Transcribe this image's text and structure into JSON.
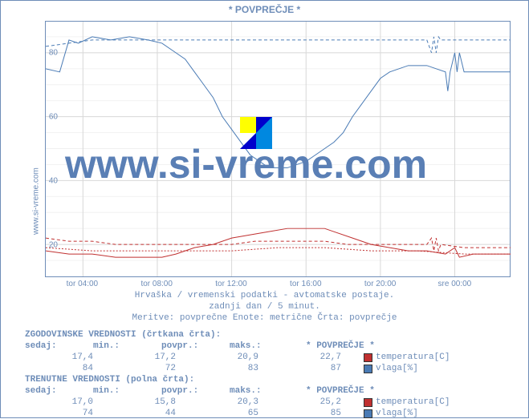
{
  "title": "* POVPREČJE *",
  "ylabel_left": "www.si-vreme.com",
  "watermark": "www.si-vreme.com",
  "caption_lines": [
    "Hrvaška / vremenski podatki - avtomatske postaje.",
    "zadnji dan / 5 minut.",
    "Meritve: povprečne  Enote: metrične  Črta: povprečje"
  ],
  "chart": {
    "type": "line",
    "background": "#ffffff",
    "grid_color": "#d8d8d8",
    "axis_color": "#6e8db8",
    "ylim": [
      10,
      90
    ],
    "yticks": [
      20,
      40,
      60,
      80
    ],
    "xticks": [
      "tor 04:00",
      "tor 08:00",
      "tor 12:00",
      "tor 16:00",
      "tor 20:00",
      "sre 00:00"
    ],
    "xtick_pos": [
      0.08,
      0.24,
      0.4,
      0.56,
      0.72,
      0.88
    ],
    "series": [
      {
        "name": "vlaga_solid",
        "color": "#4a7bb5",
        "dash": "none",
        "width": 1,
        "points": [
          [
            0.0,
            75
          ],
          [
            0.03,
            74
          ],
          [
            0.05,
            84
          ],
          [
            0.07,
            83
          ],
          [
            0.1,
            85
          ],
          [
            0.14,
            84
          ],
          [
            0.18,
            85
          ],
          [
            0.22,
            84
          ],
          [
            0.25,
            83
          ],
          [
            0.28,
            80
          ],
          [
            0.3,
            78
          ],
          [
            0.32,
            74
          ],
          [
            0.34,
            70
          ],
          [
            0.36,
            66
          ],
          [
            0.38,
            60
          ],
          [
            0.4,
            56
          ],
          [
            0.42,
            52
          ],
          [
            0.44,
            48
          ],
          [
            0.46,
            46
          ],
          [
            0.48,
            44
          ],
          [
            0.5,
            44
          ],
          [
            0.52,
            44
          ],
          [
            0.54,
            45
          ],
          [
            0.56,
            46
          ],
          [
            0.58,
            48
          ],
          [
            0.6,
            50
          ],
          [
            0.62,
            52
          ],
          [
            0.64,
            55
          ],
          [
            0.66,
            60
          ],
          [
            0.68,
            64
          ],
          [
            0.7,
            68
          ],
          [
            0.72,
            72
          ],
          [
            0.74,
            74
          ],
          [
            0.76,
            75
          ],
          [
            0.78,
            76
          ],
          [
            0.8,
            76
          ],
          [
            0.82,
            76
          ],
          [
            0.84,
            75
          ],
          [
            0.86,
            74
          ],
          [
            0.865,
            68
          ],
          [
            0.87,
            74
          ],
          [
            0.88,
            80
          ],
          [
            0.885,
            74
          ],
          [
            0.89,
            80
          ],
          [
            0.9,
            74
          ],
          [
            0.94,
            74
          ],
          [
            1.0,
            74
          ]
        ]
      },
      {
        "name": "vlaga_dash",
        "color": "#4a7bb5",
        "dash": "4,3",
        "width": 1,
        "points": [
          [
            0.0,
            82
          ],
          [
            0.05,
            83
          ],
          [
            0.1,
            84
          ],
          [
            0.15,
            84
          ],
          [
            0.2,
            84
          ],
          [
            0.25,
            84
          ],
          [
            0.3,
            84
          ],
          [
            0.35,
            84
          ],
          [
            0.4,
            84
          ],
          [
            0.45,
            84
          ],
          [
            0.5,
            84
          ],
          [
            0.55,
            84
          ],
          [
            0.6,
            84
          ],
          [
            0.65,
            84
          ],
          [
            0.7,
            84
          ],
          [
            0.75,
            84
          ],
          [
            0.8,
            84
          ],
          [
            0.82,
            84
          ],
          [
            0.83,
            80
          ],
          [
            0.835,
            85
          ],
          [
            0.84,
            80
          ],
          [
            0.845,
            85
          ],
          [
            0.85,
            84
          ],
          [
            0.9,
            84
          ],
          [
            0.95,
            84
          ],
          [
            1.0,
            84
          ]
        ]
      },
      {
        "name": "temp_solid",
        "color": "#c03030",
        "dash": "none",
        "width": 1,
        "points": [
          [
            0.0,
            18
          ],
          [
            0.05,
            17
          ],
          [
            0.1,
            17
          ],
          [
            0.15,
            16
          ],
          [
            0.2,
            16
          ],
          [
            0.25,
            16
          ],
          [
            0.28,
            17
          ],
          [
            0.32,
            19
          ],
          [
            0.36,
            20
          ],
          [
            0.4,
            22
          ],
          [
            0.44,
            23
          ],
          [
            0.48,
            24
          ],
          [
            0.52,
            25
          ],
          [
            0.56,
            25
          ],
          [
            0.6,
            25
          ],
          [
            0.62,
            24
          ],
          [
            0.66,
            22
          ],
          [
            0.7,
            20
          ],
          [
            0.74,
            19
          ],
          [
            0.78,
            18
          ],
          [
            0.82,
            18
          ],
          [
            0.86,
            17
          ],
          [
            0.88,
            19
          ],
          [
            0.89,
            16
          ],
          [
            0.92,
            17
          ],
          [
            1.0,
            17
          ]
        ]
      },
      {
        "name": "temp_dash",
        "color": "#c03030",
        "dash": "4,3",
        "width": 1,
        "points": [
          [
            0.0,
            22
          ],
          [
            0.05,
            21
          ],
          [
            0.1,
            21
          ],
          [
            0.15,
            20
          ],
          [
            0.2,
            20
          ],
          [
            0.25,
            20
          ],
          [
            0.3,
            20
          ],
          [
            0.35,
            20
          ],
          [
            0.4,
            20
          ],
          [
            0.45,
            21
          ],
          [
            0.5,
            21
          ],
          [
            0.55,
            21
          ],
          [
            0.6,
            21
          ],
          [
            0.65,
            20
          ],
          [
            0.7,
            20
          ],
          [
            0.75,
            20
          ],
          [
            0.8,
            20
          ],
          [
            0.82,
            20
          ],
          [
            0.83,
            22
          ],
          [
            0.835,
            18
          ],
          [
            0.84,
            22
          ],
          [
            0.845,
            18
          ],
          [
            0.85,
            20
          ],
          [
            0.9,
            19
          ],
          [
            0.95,
            19
          ],
          [
            1.0,
            19
          ]
        ]
      },
      {
        "name": "temp_dash2",
        "color": "#c03030",
        "dash": "2,2",
        "width": 1,
        "points": [
          [
            0.0,
            19
          ],
          [
            0.1,
            18
          ],
          [
            0.2,
            18
          ],
          [
            0.3,
            18
          ],
          [
            0.4,
            18
          ],
          [
            0.5,
            19
          ],
          [
            0.6,
            19
          ],
          [
            0.7,
            18
          ],
          [
            0.8,
            18
          ],
          [
            0.9,
            17
          ],
          [
            1.0,
            17
          ]
        ]
      }
    ]
  },
  "tables": {
    "hist_title": "ZGODOVINSKE VREDNOSTI (črtkana črta):",
    "cur_title": "TRENUTNE VREDNOSTI (polna črta):",
    "headers": [
      "sedaj:",
      "min.:",
      "povpr.:",
      "maks.:"
    ],
    "legend_title": "* POVPREČJE *",
    "hist_rows": [
      {
        "vals": [
          "17,4",
          "17,2",
          "20,9",
          "22,7"
        ],
        "legend": "temperatura[C]",
        "color": "#c03030"
      },
      {
        "vals": [
          "84",
          "72",
          "83",
          "87"
        ],
        "legend": "vlaga[%]",
        "color": "#4a7bb5"
      }
    ],
    "cur_rows": [
      {
        "vals": [
          "17,0",
          "15,8",
          "20,3",
          "25,2"
        ],
        "legend": "temperatura[C]",
        "color": "#c03030"
      },
      {
        "vals": [
          "74",
          "44",
          "65",
          "85"
        ],
        "legend": "vlaga[%]",
        "color": "#4a7bb5"
      }
    ]
  }
}
